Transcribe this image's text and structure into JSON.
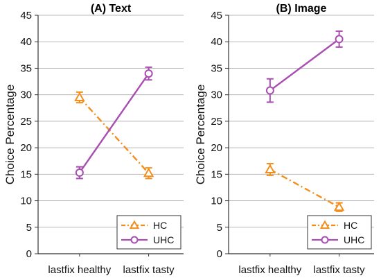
{
  "chart_data": [
    {
      "type": "line",
      "title": "(A) Text",
      "xlabel": "",
      "ylabel": "Choice Percentage",
      "categories": [
        "lastfix healthy",
        "lastfix tasty"
      ],
      "ylim": [
        0,
        45
      ],
      "yticks": [
        0,
        5,
        10,
        15,
        20,
        25,
        30,
        35,
        40,
        45
      ],
      "grid": "horizontal",
      "legend_position": "bottom-right",
      "series": [
        {
          "name": "HC",
          "marker": "triangle",
          "linestyle": "dash-dot",
          "color": "#F28E1C",
          "values": [
            29.5,
            15.2
          ],
          "errors": [
            1.0,
            1.0
          ]
        },
        {
          "name": "UHC",
          "marker": "circle",
          "linestyle": "solid",
          "color": "#A84DB1",
          "values": [
            15.3,
            34.0
          ],
          "errors": [
            1.1,
            1.2
          ]
        }
      ]
    },
    {
      "type": "line",
      "title": "(B) Image",
      "xlabel": "",
      "ylabel": "Choice Percentage",
      "categories": [
        "lastfix healthy",
        "lastfix tasty"
      ],
      "ylim": [
        0,
        45
      ],
      "yticks": [
        0,
        5,
        10,
        15,
        20,
        25,
        30,
        35,
        40,
        45
      ],
      "grid": "horizontal",
      "legend_position": "bottom-right",
      "series": [
        {
          "name": "HC",
          "marker": "triangle",
          "linestyle": "dash-dot",
          "color": "#F28E1C",
          "values": [
            15.9,
            8.8
          ],
          "errors": [
            1.1,
            0.8
          ]
        },
        {
          "name": "UHC",
          "marker": "circle",
          "linestyle": "solid",
          "color": "#A84DB1",
          "values": [
            30.8,
            40.5
          ],
          "errors": [
            2.2,
            1.5
          ]
        }
      ]
    }
  ]
}
